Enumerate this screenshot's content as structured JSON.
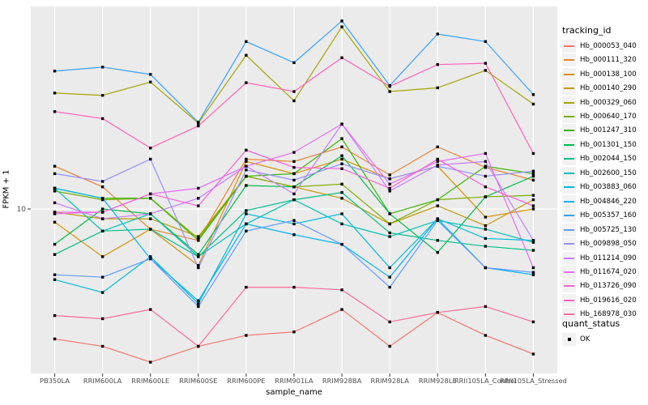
{
  "chart_data": {
    "type": "line",
    "title": "",
    "xlabel": "sample_name",
    "ylabel": "FPKM + 1",
    "y_scale": "log10",
    "ylim": [
      3.5,
      36
    ],
    "y_ticks": [
      10
    ],
    "y_tick_labels": [
      "10"
    ],
    "grid": "major-white-on-gray",
    "legend_position": "right",
    "categories": [
      "PB350LA",
      "RRIM600LA",
      "RRIM600LE",
      "RRIM600SE",
      "RRIM600PE",
      "RRIM901LA",
      "RRIM928BA",
      "RRIM928LA",
      "RRIM928LE",
      "RRII105LA_Control",
      "RRII105LA_Stressed"
    ],
    "series": [
      {
        "name": "Hb_000053_040",
        "color": "#F8766D",
        "values": [
          4.4,
          4.2,
          3.8,
          4.2,
          4.5,
          4.6,
          5.3,
          4.2,
          5.2,
          4.5,
          4.0
        ]
      },
      {
        "name": "Hb_000111_320",
        "color": "#EA8331",
        "values": [
          13.1,
          11.5,
          8.8,
          8.2,
          13.7,
          13.5,
          14.8,
          12.4,
          14.8,
          13.0,
          12.0
        ]
      },
      {
        "name": "Hb_000138_100",
        "color": "#D89000",
        "values": [
          9.2,
          7.4,
          8.8,
          7.0,
          13.5,
          12.5,
          13.7,
          12.1,
          13.1,
          9.5,
          10.0
        ]
      },
      {
        "name": "Hb_000140_290",
        "color": "#C09B00",
        "values": [
          9.8,
          9.4,
          9.4,
          8.4,
          12.3,
          11.5,
          10.7,
          9.1,
          10.2,
          9.0,
          10.6
        ]
      },
      {
        "name": "Hb_000329_060",
        "color": "#A3A500",
        "values": [
          20.8,
          20.5,
          22.3,
          17.2,
          26.4,
          19.8,
          31.6,
          21.0,
          21.5,
          24.0,
          19.4
        ]
      },
      {
        "name": "Hb_000640_170",
        "color": "#7CAE00",
        "values": [
          11.2,
          10.6,
          10.7,
          8.3,
          12.3,
          11.5,
          11.7,
          9.1,
          10.6,
          10.8,
          10.9
        ]
      },
      {
        "name": "Hb_001247_310",
        "color": "#39B600",
        "values": [
          11.4,
          10.7,
          10.7,
          8.2,
          12.3,
          12.5,
          15.6,
          9.7,
          10.6,
          13.1,
          12.5
        ]
      },
      {
        "name": "Hb_001301_150",
        "color": "#00BB4E",
        "values": [
          8.0,
          10.0,
          9.7,
          7.5,
          11.6,
          11.5,
          14.0,
          9.7,
          7.6,
          10.8,
          12.3
        ]
      },
      {
        "name": "Hb_002044_150",
        "color": "#00C087",
        "values": [
          7.5,
          8.7,
          8.8,
          7.4,
          9.9,
          10.6,
          11.1,
          8.6,
          8.2,
          7.9,
          7.7
        ]
      },
      {
        "name": "Hb_002600_150",
        "color": "#00C0B4",
        "values": [
          11.4,
          8.7,
          9.7,
          7.4,
          9.1,
          10.6,
          9.1,
          8.4,
          9.3,
          8.8,
          8.1
        ]
      },
      {
        "name": "Hb_003883_060",
        "color": "#00BCD8",
        "values": [
          6.4,
          5.9,
          7.4,
          5.5,
          9.7,
          9.1,
          9.7,
          6.9,
          9.4,
          8.3,
          8.2
        ]
      },
      {
        "name": "Hb_004846_220",
        "color": "#00B4F0",
        "values": [
          11.4,
          10.7,
          7.3,
          5.6,
          9.1,
          8.5,
          8.0,
          6.5,
          9.4,
          6.9,
          6.6
        ]
      },
      {
        "name": "Hb_005357_160",
        "color": "#35A2FF",
        "values": [
          23.9,
          24.5,
          23.4,
          17.3,
          28.8,
          25.2,
          32.8,
          21.8,
          30.2,
          28.8,
          20.6
        ]
      },
      {
        "name": "Hb_005725_130",
        "color": "#619CFF",
        "values": [
          6.6,
          6.5,
          7.3,
          5.4,
          8.7,
          9.3,
          8.0,
          6.1,
          9.3,
          6.9,
          6.7
        ]
      },
      {
        "name": "Hb_009898_050",
        "color": "#9590FF",
        "values": [
          12.5,
          11.9,
          13.7,
          6.9,
          12.8,
          12.0,
          13.3,
          12.1,
          13.1,
          12.3,
          12.7
        ]
      },
      {
        "name": "Hb_011214_090",
        "color": "#C77CFF",
        "values": [
          10.4,
          9.4,
          9.7,
          10.7,
          13.1,
          11.0,
          17.1,
          11.2,
          13.2,
          13.5,
          8.2
        ]
      },
      {
        "name": "Hb_011674_020",
        "color": "#E76BF3",
        "values": [
          9.7,
          9.8,
          11.0,
          11.4,
          13.1,
          14.3,
          17.1,
          11.7,
          13.5,
          14.2,
          6.9
        ]
      },
      {
        "name": "Hb_013726_090",
        "color": "#FA62DB",
        "values": [
          9.8,
          9.8,
          11.0,
          10.2,
          14.5,
          13.0,
          12.9,
          11.4,
          13.7,
          11.5,
          10.2
        ]
      },
      {
        "name": "Hb_019616_020",
        "color": "#FF62BC",
        "values": [
          18.5,
          17.7,
          14.7,
          16.9,
          22.2,
          21.0,
          26.0,
          21.7,
          24.9,
          25.1,
          14.2
        ]
      },
      {
        "name": "Hb_168978_030",
        "color": "#FF6A98",
        "values": [
          5.1,
          5.0,
          5.3,
          4.2,
          6.1,
          6.1,
          6.0,
          4.9,
          5.2,
          5.4,
          4.9
        ]
      }
    ],
    "legend": {
      "color_title": "tracking_id",
      "shape_title": "quant_status",
      "shape_items": [
        "OK"
      ]
    },
    "style": {
      "panel_bg": "#EBEBEB",
      "grid_color": "#FFFFFF",
      "legend_key_bg": "#F2F2F2",
      "axis_text_color": "#4D4D4D",
      "tick_mark_color": "#333333",
      "point_color": "#000000",
      "point_shape": "square"
    }
  }
}
